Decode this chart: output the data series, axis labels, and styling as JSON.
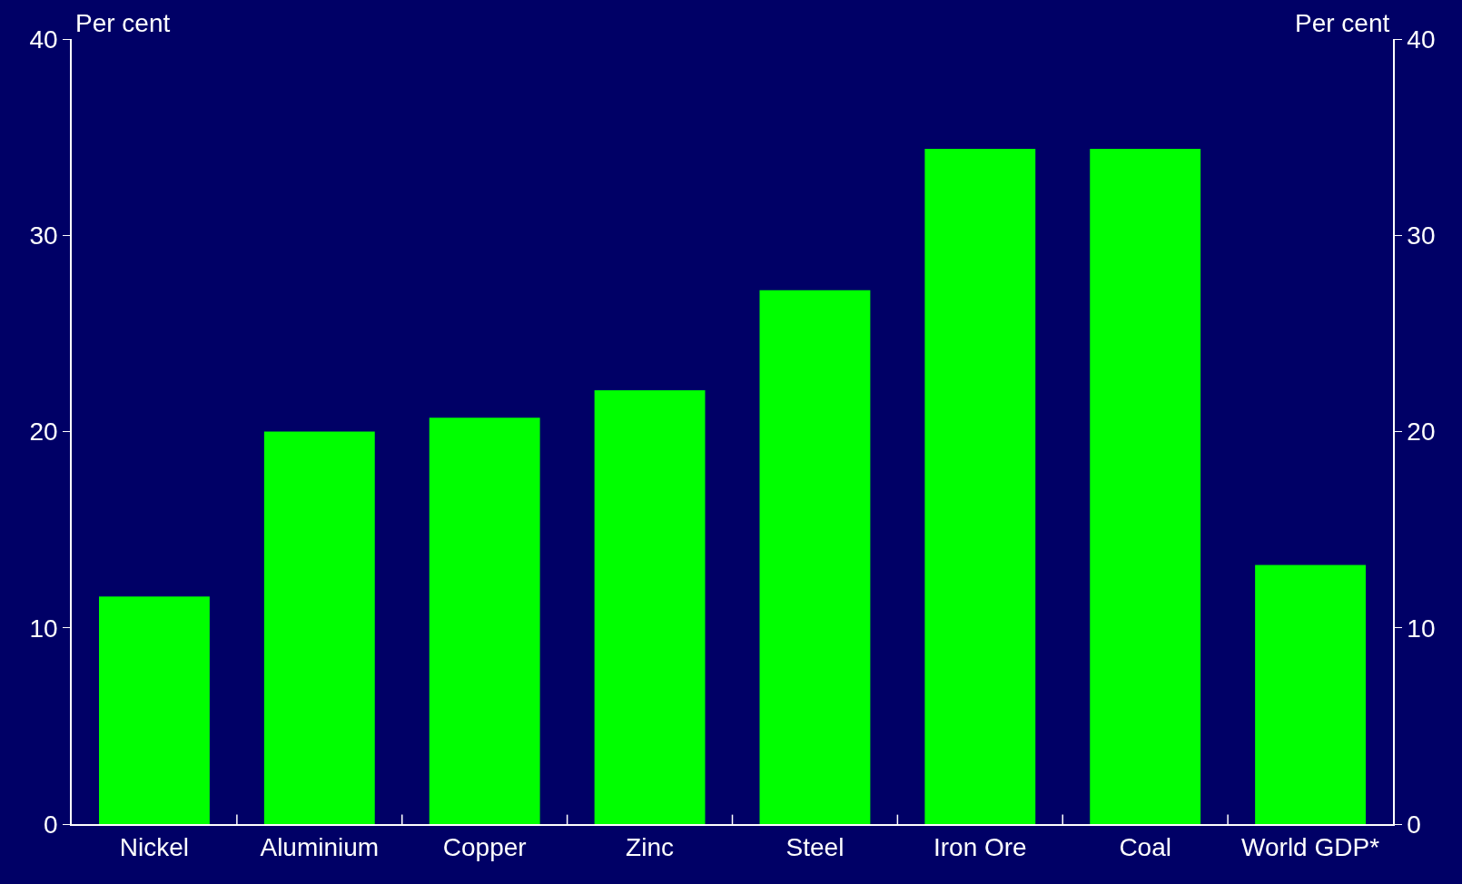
{
  "chart_data": {
    "type": "bar",
    "ylabel": "Per cent",
    "y2label": "Per cent",
    "categories": [
      "Nickel",
      "Aluminium",
      "Copper",
      "Zinc",
      "Steel",
      "Iron Ore",
      "Coal",
      "World GDP*"
    ],
    "values": [
      11.6,
      20.0,
      20.7,
      22.1,
      27.2,
      34.4,
      34.4,
      13.2
    ],
    "color": "#00ff00",
    "ylim": [
      0,
      40
    ],
    "yticks": [
      0,
      10,
      20,
      30,
      40
    ],
    "y2lim": [
      0,
      40
    ],
    "y2ticks": [
      0,
      10,
      20,
      30,
      40
    ],
    "grid": false
  }
}
